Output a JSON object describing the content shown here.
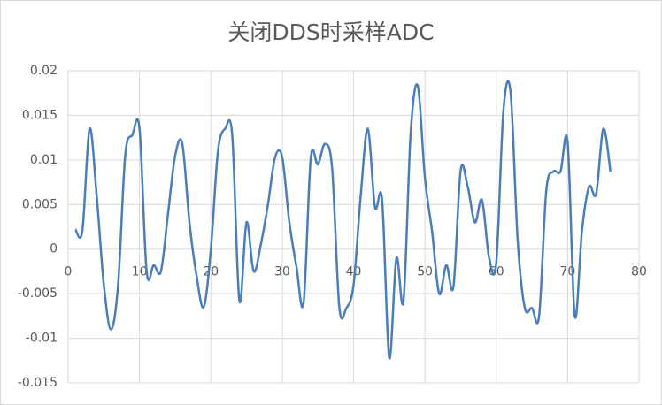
{
  "chart_data": {
    "type": "line",
    "title": "关闭DDS时采样ADC",
    "x": [
      1,
      2,
      3,
      4,
      5,
      6,
      7,
      8,
      9,
      10,
      11,
      12,
      13,
      14,
      15,
      16,
      17,
      18,
      19,
      20,
      21,
      22,
      23,
      24,
      25,
      26,
      27,
      28,
      29,
      30,
      31,
      32,
      33,
      34,
      35,
      36,
      37,
      38,
      39,
      40,
      41,
      42,
      43,
      44,
      45,
      46,
      47,
      48,
      49,
      50,
      51,
      52,
      53,
      54,
      55,
      56,
      57,
      58,
      59,
      60,
      61,
      62,
      63,
      64,
      65,
      66,
      67,
      68,
      69,
      70,
      71,
      72,
      73,
      74,
      75,
      76
    ],
    "series": [
      {
        "name": "ADC",
        "color": "#4a7ebb",
        "values": [
          0.0022,
          0.0021,
          0.0135,
          0.006,
          -0.004,
          -0.009,
          -0.004,
          0.0105,
          0.0128,
          0.0135,
          -0.0025,
          -0.0018,
          -0.0025,
          0.004,
          0.0105,
          0.0118,
          0.003,
          -0.003,
          -0.0065,
          0.0,
          0.011,
          0.0135,
          0.0127,
          -0.0058,
          0.003,
          -0.0025,
          0.0005,
          0.005,
          0.0103,
          0.0103,
          0.003,
          -0.002,
          -0.006,
          0.0102,
          0.0095,
          0.0118,
          0.009,
          -0.0065,
          -0.0066,
          -0.004,
          0.006,
          0.0135,
          0.0047,
          0.0055,
          -0.0122,
          -0.001,
          -0.0058,
          0.013,
          0.0183,
          0.008,
          0.002,
          -0.005,
          -0.0018,
          -0.0042,
          0.0088,
          0.007,
          0.003,
          0.0055,
          -0.001,
          -0.0015,
          0.0155,
          0.0176,
          0.001,
          -0.0066,
          -0.0066,
          -0.0075,
          0.0065,
          0.0087,
          0.0087,
          0.012,
          -0.0075,
          0.002,
          0.007,
          0.0062,
          0.0135,
          0.0087
        ]
      }
    ],
    "xlim": [
      0,
      80
    ],
    "xticks": [
      0,
      10,
      20,
      30,
      40,
      50,
      60,
      70,
      80
    ],
    "ylim": [
      -0.015,
      0.02
    ],
    "yticks": [
      0.02,
      0.015,
      0.01,
      0.005,
      0,
      -0.005,
      -0.01,
      -0.015
    ],
    "grid": true
  }
}
